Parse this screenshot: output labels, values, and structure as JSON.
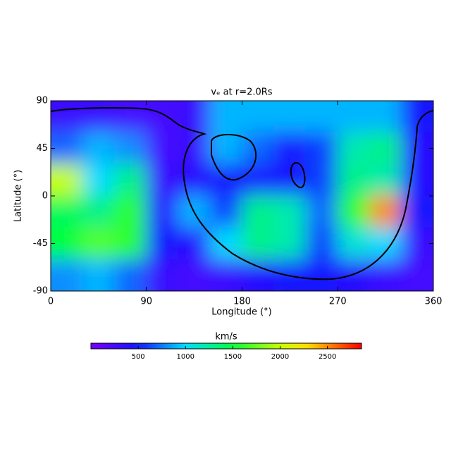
{
  "chart_data": {
    "type": "heatmap",
    "title": "vₑ at r=2.0Rs",
    "x_label": "Longitude (°)",
    "y_label": "Latitude (°)",
    "x": [
      15,
      45,
      75,
      105,
      135,
      165,
      195,
      225,
      255,
      285,
      315,
      345
    ],
    "y": [
      75,
      45,
      15,
      -15,
      -45,
      -75
    ],
    "values": [
      [
        300,
        300,
        250,
        250,
        300,
        900,
        900,
        900,
        900,
        900,
        900,
        500
      ],
      [
        700,
        900,
        800,
        250,
        300,
        900,
        700,
        500,
        600,
        1200,
        1300,
        400
      ],
      [
        2000,
        1000,
        1300,
        300,
        400,
        500,
        500,
        500,
        600,
        1300,
        1200,
        400
      ],
      [
        1400,
        1300,
        1600,
        400,
        900,
        600,
        1300,
        1200,
        700,
        1600,
        2500,
        500
      ],
      [
        1500,
        1700,
        1600,
        500,
        400,
        1000,
        1300,
        1200,
        600,
        1100,
        1000,
        300
      ],
      [
        800,
        900,
        700,
        300,
        250,
        300,
        400,
        500,
        500,
        400,
        300,
        250
      ]
    ],
    "xlim": [
      0,
      360
    ],
    "xticks": [
      0,
      90,
      180,
      270,
      360
    ],
    "ylim": [
      -90,
      90
    ],
    "yticks": [
      -90,
      -45,
      0,
      45,
      90
    ],
    "colorbar_label": "km/s",
    "colorlim": [
      0,
      2860
    ],
    "colorticks": [
      500,
      1000,
      1500,
      2000,
      2500
    ]
  }
}
